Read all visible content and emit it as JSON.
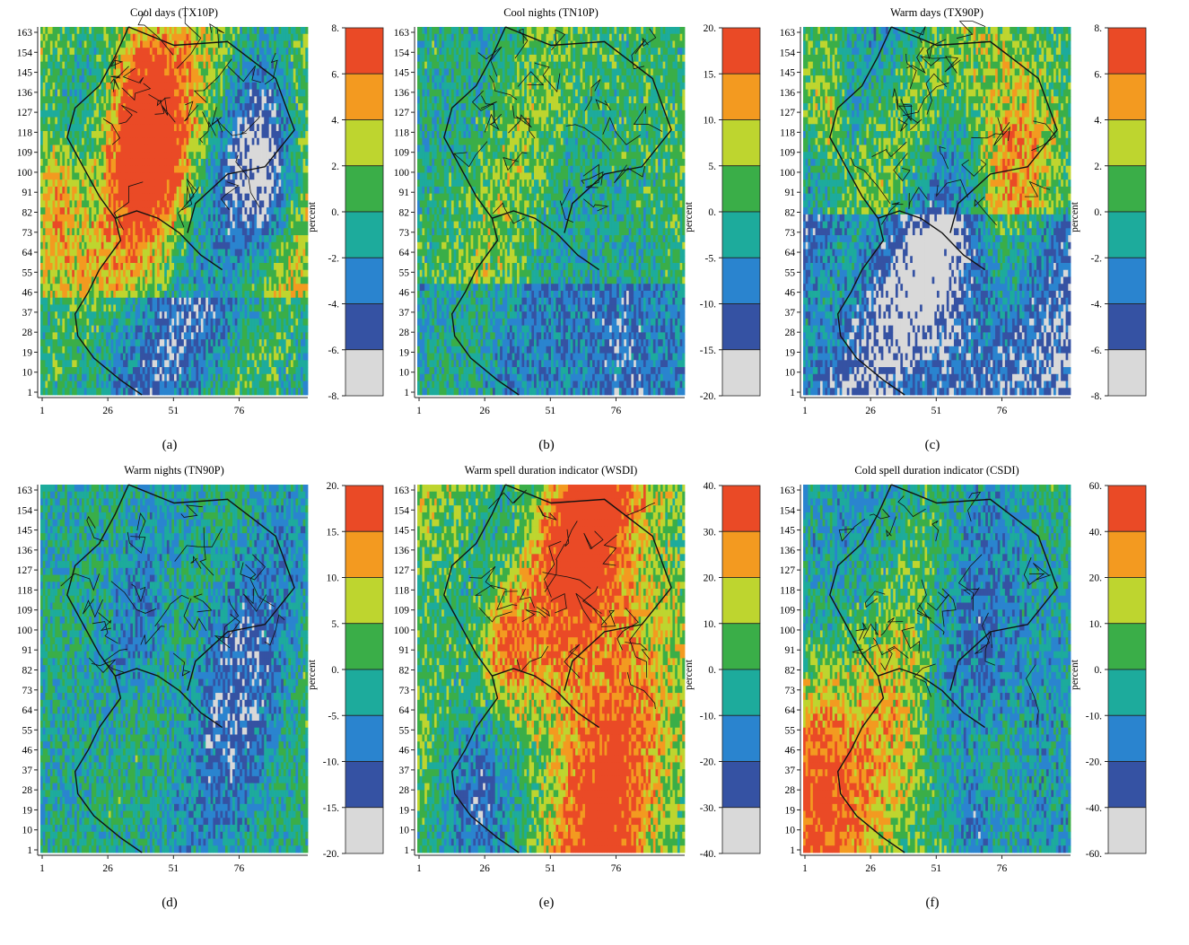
{
  "palette": [
    "#d9d9d9",
    "#3552a3",
    "#2a84cf",
    "#1dab9c",
    "#3aae48",
    "#bed52f",
    "#f39a20",
    "#ea4a26"
  ],
  "outline_color": "#111111",
  "chart_data": [
    {
      "type": "heatmap",
      "id": "a",
      "title": "Cool days (TX10P)",
      "sublabel": "(a)",
      "x_ticks": [
        "1",
        "26",
        "51",
        "76"
      ],
      "y_ticks": [
        "163",
        "154",
        "145",
        "136",
        "127",
        "118",
        "109",
        "100",
        "91",
        "82",
        "73",
        "64",
        "55",
        "46",
        "37",
        "28",
        "19",
        "10",
        "1"
      ],
      "colorbar": {
        "label": "percent",
        "ticks": [
          "8.",
          "6.",
          "4.",
          "2.",
          "0.",
          "-2.",
          "-4.",
          "-6.",
          "-8."
        ]
      },
      "field_pattern": "red-green patches north and centre, blue south, grey gaps east"
    },
    {
      "type": "heatmap",
      "id": "b",
      "title": "Cool nights (TN10P)",
      "sublabel": "(b)",
      "x_ticks": [
        "1",
        "26",
        "51",
        "76"
      ],
      "y_ticks": [
        "163",
        "154",
        "145",
        "136",
        "127",
        "118",
        "109",
        "100",
        "91",
        "82",
        "73",
        "64",
        "55",
        "46",
        "37",
        "28",
        "19",
        "10",
        "1"
      ],
      "colorbar": {
        "label": "percent",
        "ticks": [
          "20.",
          "15.",
          "10.",
          "5.",
          "0.",
          "-5.",
          "-10.",
          "-15.",
          "-20."
        ]
      },
      "field_pattern": "mostly green and teal, blue to the south-east"
    },
    {
      "type": "heatmap",
      "id": "c",
      "title": "Warm days (TX90P)",
      "sublabel": "(c)",
      "x_ticks": [
        "1",
        "26",
        "51",
        "76"
      ],
      "y_ticks": [
        "163",
        "154",
        "145",
        "136",
        "127",
        "118",
        "109",
        "100",
        "91",
        "82",
        "73",
        "64",
        "55",
        "46",
        "37",
        "28",
        "19",
        "10",
        "1"
      ],
      "colorbar": {
        "label": "percent",
        "ticks": [
          "8.",
          "6.",
          "4.",
          "2.",
          "0.",
          "-2.",
          "-4.",
          "-6.",
          "-8."
        ]
      },
      "field_pattern": "red north-east, blue and grey speckle south"
    },
    {
      "type": "heatmap",
      "id": "d",
      "title": "Warm nights (TN90P)",
      "sublabel": "(d)",
      "x_ticks": [
        "1",
        "26",
        "51",
        "76"
      ],
      "y_ticks": [
        "163",
        "154",
        "145",
        "136",
        "127",
        "118",
        "109",
        "100",
        "91",
        "82",
        "73",
        "64",
        "55",
        "46",
        "37",
        "28",
        "19",
        "10",
        "1"
      ],
      "colorbar": {
        "label": "percent",
        "ticks": [
          "20.",
          "15.",
          "10.",
          "5.",
          "0.",
          "-5.",
          "-10.",
          "-15.",
          "-20."
        ]
      },
      "field_pattern": "teal and blue overall, darker blue to the east"
    },
    {
      "type": "heatmap",
      "id": "e",
      "title": "Warm spell duration indicator (WSDI)",
      "sublabel": "(e)",
      "x_ticks": [
        "1",
        "26",
        "51",
        "76"
      ],
      "y_ticks": [
        "163",
        "154",
        "145",
        "136",
        "127",
        "118",
        "109",
        "100",
        "91",
        "82",
        "73",
        "64",
        "55",
        "46",
        "37",
        "28",
        "19",
        "10",
        "1"
      ],
      "colorbar": {
        "label": "percent",
        "ticks": [
          "40.",
          "30.",
          "20.",
          "10.",
          "0.",
          "-10.",
          "-20.",
          "-30.",
          "-40."
        ]
      },
      "field_pattern": "strong red north-east and south, mixed elsewhere"
    },
    {
      "type": "heatmap",
      "id": "f",
      "title": "Cold spell duration indicator (CSDI)",
      "sublabel": "(f)",
      "x_ticks": [
        "1",
        "26",
        "51",
        "76"
      ],
      "y_ticks": [
        "163",
        "154",
        "145",
        "136",
        "127",
        "118",
        "109",
        "100",
        "91",
        "82",
        "73",
        "64",
        "55",
        "46",
        "37",
        "28",
        "19",
        "10",
        "1"
      ],
      "colorbar": {
        "label": "percent",
        "ticks": [
          "60.",
          "40.",
          "20.",
          "10.",
          "0.",
          "-10.",
          "-20.",
          "-40.",
          "-60."
        ]
      },
      "field_pattern": "red south-west, blue east, green north"
    }
  ]
}
